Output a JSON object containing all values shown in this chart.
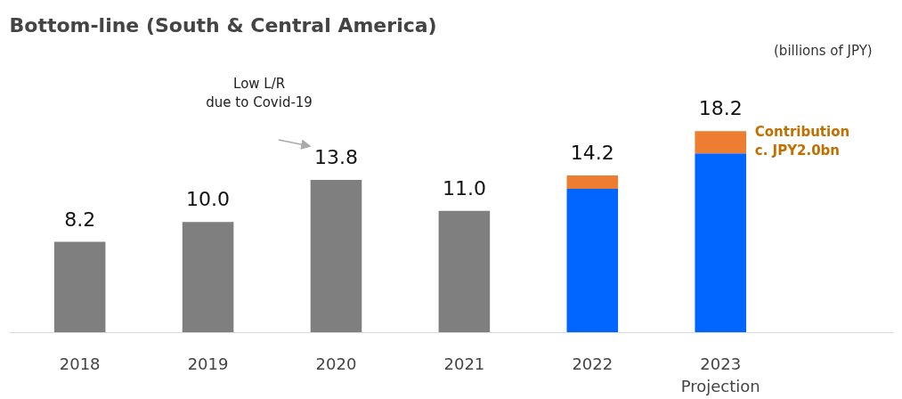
{
  "chart_data": {
    "type": "bar",
    "stacked": true,
    "title": "Bottom-line (South & Central America)",
    "categories": [
      "2018",
      "2019",
      "2020",
      "2021",
      "2022",
      "2023\nProjection"
    ],
    "series": [
      {
        "color": "#7f7f7f",
        "values": [
          8.2,
          10.0,
          13.8,
          11.0,
          null,
          null
        ],
        "value_labels": [
          "8.2",
          "10.0",
          "13.8",
          "11.0",
          null,
          null
        ]
      },
      {
        "color": "#0066ff",
        "values": [
          null,
          null,
          null,
          null,
          13.0,
          16.2
        ]
      },
      {
        "color": "#ed7d31",
        "values": [
          null,
          null,
          null,
          null,
          1.2,
          2.0
        ]
      }
    ],
    "totals": [
      null,
      null,
      null,
      null,
      "14.2",
      "18.2"
    ],
    "annotations": [
      "(billions of JPY)",
      "Low L/R\ndue to Covid-19",
      "Contribution\nc. JPY2.0bn"
    ]
  }
}
